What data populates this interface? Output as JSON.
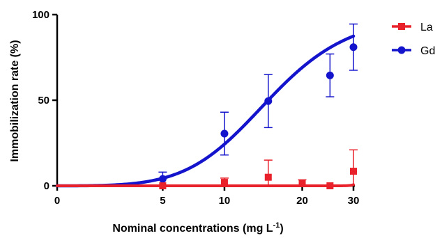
{
  "chart_data": {
    "type": "scatter",
    "title": "",
    "xlabel": "Nominal concentrations (mg L",
    "xlabel_superscript": "-1",
    "xlabel_suffix": ")",
    "ylabel": "Immobilization rate (%)",
    "ylim": [
      0,
      100
    ],
    "yticks": [
      0,
      50,
      100
    ],
    "xticks": [
      {
        "value": 0,
        "label": "0"
      },
      {
        "value": 5,
        "label": "5"
      },
      {
        "value": 10,
        "label": "10"
      },
      {
        "value": 20,
        "label": "20"
      },
      {
        "value": 30,
        "label": "30"
      }
    ],
    "x_scale": "log(x+1)",
    "grid": false,
    "legend_position": "right",
    "series": [
      {
        "name": "Gd",
        "color": "#1414cc",
        "marker": "circle",
        "points": [
          {
            "x": 5,
            "y": 4,
            "err": 4
          },
          {
            "x": 10,
            "y": 30.5,
            "err": 12.5
          },
          {
            "x": 15,
            "y": 49.5,
            "err": 15.5
          },
          {
            "x": 25,
            "y": 64.5,
            "err": 12.5
          },
          {
            "x": 30,
            "y": 81,
            "err": 13.5
          }
        ],
        "fit": {
          "model": "sigmoid",
          "ec50": 15,
          "hill": 2.8,
          "top": 100
        }
      },
      {
        "name": "La",
        "color": "#e8212a",
        "marker": "square",
        "points": [
          {
            "x": 5,
            "y": 0,
            "err": 0
          },
          {
            "x": 10,
            "y": 2,
            "err": 2.5
          },
          {
            "x": 15,
            "y": 5,
            "err": 10
          },
          {
            "x": 20,
            "y": 1.5,
            "err": 2
          },
          {
            "x": 25,
            "y": 0,
            "err": 0
          },
          {
            "x": 30,
            "y": 8.5,
            "err": 12.5
          }
        ],
        "fit": {
          "model": "sigmoid",
          "ec50": 34,
          "hill": 40,
          "top": 100
        }
      }
    ]
  }
}
